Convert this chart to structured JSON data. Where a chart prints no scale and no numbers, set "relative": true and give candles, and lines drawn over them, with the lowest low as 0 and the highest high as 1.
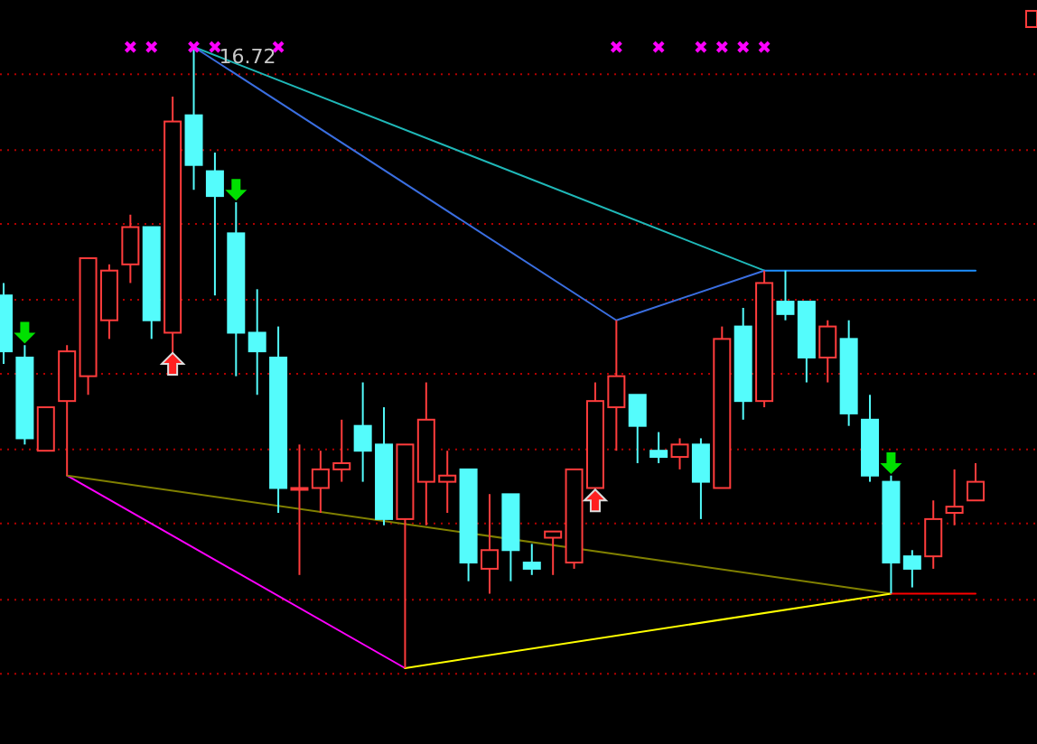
{
  "chart_data": {
    "type": "candlestick",
    "relative": true,
    "ref_lines": [
      {
        "axis": "y",
        "value": 0.956,
        "color": "#b00000",
        "line_style": "dotted"
      },
      {
        "axis": "y",
        "value": 0.834,
        "color": "#b00000",
        "line_style": "dotted"
      },
      {
        "axis": "y",
        "value": 0.715,
        "color": "#b00000",
        "line_style": "dotted"
      },
      {
        "axis": "y",
        "value": 0.593,
        "color": "#b00000",
        "line_style": "dotted"
      },
      {
        "axis": "y",
        "value": 0.474,
        "color": "#b00000",
        "line_style": "dotted"
      },
      {
        "axis": "y",
        "value": 0.352,
        "color": "#b00000",
        "line_style": "dotted"
      },
      {
        "axis": "y",
        "value": 0.233,
        "color": "#b00000",
        "line_style": "dotted"
      },
      {
        "axis": "y",
        "value": 0.11,
        "color": "#b00000",
        "line_style": "dotted"
      },
      {
        "axis": "y",
        "value": -0.009,
        "color": "#b00000",
        "line_style": "dotted"
      }
    ],
    "categories": [
      null,
      null,
      null,
      null,
      null,
      null,
      null,
      null,
      null,
      null,
      null,
      null,
      null,
      null,
      null,
      null,
      null,
      null,
      null,
      null,
      null,
      null,
      null,
      null,
      null,
      null,
      null,
      null,
      null,
      null,
      null,
      null,
      null,
      null,
      null,
      null,
      null,
      null,
      null,
      null,
      null,
      null,
      null,
      null,
      null,
      null,
      null
    ],
    "ohlc": [
      [
        0.6,
        0.62,
        0.49,
        0.51
      ],
      [
        0.5,
        0.52,
        0.36,
        0.37
      ],
      [
        0.35,
        0.42,
        0.35,
        0.42
      ],
      [
        0.43,
        0.52,
        0.31,
        0.51
      ],
      [
        0.47,
        0.66,
        0.44,
        0.66
      ],
      [
        0.56,
        0.65,
        0.53,
        0.64
      ],
      [
        0.65,
        0.73,
        0.62,
        0.71
      ],
      [
        0.71,
        0.71,
        0.53,
        0.56
      ],
      [
        0.54,
        0.92,
        0.5,
        0.88
      ],
      [
        0.89,
        1,
        0.77,
        0.81
      ],
      [
        0.8,
        0.83,
        0.6,
        0.76
      ],
      [
        0.7,
        0.75,
        0.47,
        0.54
      ],
      [
        0.54,
        0.61,
        0.44,
        0.51
      ],
      [
        0.5,
        0.55,
        0.25,
        0.29
      ],
      [
        0.29,
        0.36,
        0.15,
        0.29
      ],
      [
        0.29,
        0.35,
        0.25,
        0.32
      ],
      [
        0.32,
        0.4,
        0.3,
        0.33
      ],
      [
        0.39,
        0.46,
        0.3,
        0.35
      ],
      [
        0.36,
        0.42,
        0.23,
        0.24
      ],
      [
        0.24,
        0.36,
        0,
        0.36
      ],
      [
        0.3,
        0.46,
        0.23,
        0.4
      ],
      [
        0.3,
        0.35,
        0.25,
        0.31
      ],
      [
        0.32,
        0.32,
        0.14,
        0.17
      ],
      [
        0.16,
        0.28,
        0.12,
        0.19
      ],
      [
        0.28,
        0.28,
        0.14,
        0.19
      ],
      [
        0.17,
        0.2,
        0.15,
        0.16
      ],
      [
        0.21,
        0.22,
        0.15,
        0.22
      ],
      [
        0.17,
        0.32,
        0.16,
        0.32
      ],
      [
        0.29,
        0.46,
        0.29,
        0.43
      ],
      [
        0.42,
        0.56,
        0.35,
        0.47
      ],
      [
        0.44,
        0.44,
        0.33,
        0.39
      ],
      [
        0.35,
        0.38,
        0.33,
        0.34
      ],
      [
        0.34,
        0.37,
        0.32,
        0.36
      ],
      [
        0.36,
        0.37,
        0.24,
        0.3
      ],
      [
        0.29,
        0.55,
        0.29,
        0.53
      ],
      [
        0.55,
        0.58,
        0.4,
        0.43
      ],
      [
        0.43,
        0.64,
        0.42,
        0.62
      ],
      [
        0.59,
        0.64,
        0.56,
        0.57
      ],
      [
        0.59,
        0.59,
        0.46,
        0.5
      ],
      [
        0.5,
        0.56,
        0.46,
        0.55
      ],
      [
        0.53,
        0.56,
        0.39,
        0.41
      ],
      [
        0.4,
        0.44,
        0.3,
        0.31
      ],
      [
        0.3,
        0.31,
        0.12,
        0.17
      ],
      [
        0.18,
        0.19,
        0.13,
        0.16
      ],
      [
        0.18,
        0.27,
        0.16,
        0.24
      ],
      [
        0.25,
        0.32,
        0.23,
        0.26
      ],
      [
        0.27,
        0.33,
        0.27,
        0.3
      ]
    ],
    "colors": [
      "#54fcfc",
      "#54fcfc",
      "#ff3c3c",
      "#ff3c3c",
      "#ff3c3c",
      "#ff3c3c",
      "#ff3c3c",
      "#54fcfc",
      "#ff3c3c",
      "#54fcfc",
      "#54fcfc",
      "#54fcfc",
      "#54fcfc",
      "#54fcfc",
      "#ff3c3c",
      "#ff3c3c",
      "#ff3c3c",
      "#54fcfc",
      "#54fcfc",
      "#ff3c3c",
      "#ff3c3c",
      "#ff3c3c",
      "#54fcfc",
      "#ff3c3c",
      "#54fcfc",
      "#54fcfc",
      "#ff3c3c",
      "#ff3c3c",
      "#ff3c3c",
      "#ff3c3c",
      "#54fcfc",
      "#54fcfc",
      "#ff3c3c",
      "#54fcfc",
      "#ff3c3c",
      "#54fcfc",
      "#ff3c3c",
      "#54fcfc",
      "#54fcfc",
      "#ff3c3c",
      "#54fcfc",
      "#54fcfc",
      "#54fcfc",
      "#54fcfc",
      "#ff3c3c",
      "#ff3c3c",
      "#ff3c3c"
    ],
    "annotations": [
      "16.72"
    ],
    "series": [
      {
        "type": "line",
        "color": "#ff00ff",
        "values": [
          null,
          null,
          null,
          0.31,
          null,
          null,
          null,
          null,
          null,
          null,
          null,
          null,
          null,
          null,
          null,
          null,
          null,
          null,
          null,
          0,
          null,
          null,
          null,
          null,
          null,
          null,
          null,
          null,
          null,
          null,
          null,
          null,
          null,
          null,
          null,
          null,
          null,
          null,
          null,
          null,
          null,
          null,
          null,
          null,
          null,
          null,
          null
        ]
      },
      {
        "type": "line",
        "color": "#808000",
        "values": [
          null,
          null,
          null,
          0.31,
          null,
          null,
          null,
          null,
          null,
          null,
          null,
          null,
          null,
          null,
          null,
          null,
          null,
          null,
          null,
          null,
          null,
          null,
          null,
          null,
          null,
          null,
          null,
          null,
          null,
          null,
          null,
          null,
          null,
          null,
          null,
          null,
          null,
          null,
          null,
          null,
          null,
          null,
          0.12,
          null,
          null,
          null,
          null
        ]
      },
      {
        "type": "line",
        "color": "#ffff00",
        "values": [
          null,
          null,
          null,
          null,
          null,
          null,
          null,
          null,
          null,
          null,
          null,
          null,
          null,
          null,
          null,
          null,
          null,
          null,
          null,
          0,
          null,
          null,
          null,
          null,
          null,
          null,
          null,
          null,
          null,
          null,
          null,
          null,
          null,
          null,
          null,
          null,
          null,
          null,
          null,
          null,
          null,
          null,
          0.12,
          null,
          null,
          null,
          null
        ]
      },
      {
        "type": "line",
        "color": "#ff0000",
        "values": [
          null,
          null,
          null,
          null,
          null,
          null,
          null,
          null,
          null,
          null,
          null,
          null,
          null,
          null,
          null,
          null,
          null,
          null,
          null,
          null,
          null,
          null,
          null,
          null,
          null,
          null,
          null,
          null,
          null,
          null,
          null,
          null,
          null,
          null,
          null,
          null,
          null,
          null,
          null,
          null,
          null,
          null,
          0.12,
          null,
          null,
          null,
          0.12
        ]
      },
      {
        "type": "line",
        "color": "#1fb8b8",
        "values": [
          null,
          null,
          null,
          null,
          null,
          null,
          null,
          null,
          null,
          1,
          null,
          null,
          null,
          null,
          null,
          null,
          null,
          null,
          null,
          null,
          null,
          null,
          null,
          null,
          null,
          null,
          null,
          null,
          null,
          null,
          null,
          null,
          null,
          null,
          null,
          null,
          0.64,
          null,
          null,
          null,
          null,
          null,
          null,
          null,
          null,
          null,
          null
        ]
      },
      {
        "type": "line",
        "color": "#3a6ee0",
        "values": [
          null,
          null,
          null,
          null,
          null,
          null,
          null,
          null,
          null,
          1,
          null,
          null,
          null,
          null,
          null,
          null,
          null,
          null,
          null,
          null,
          null,
          null,
          null,
          null,
          null,
          null,
          null,
          null,
          null,
          0.56,
          null,
          null,
          null,
          null,
          null,
          null,
          0.64,
          null,
          null,
          null,
          null,
          null,
          null,
          null,
          null,
          null,
          null
        ]
      },
      {
        "type": "line",
        "color": "#1e90ff",
        "values": [
          null,
          null,
          null,
          null,
          null,
          null,
          null,
          null,
          null,
          null,
          null,
          null,
          null,
          null,
          null,
          null,
          null,
          null,
          null,
          null,
          null,
          null,
          null,
          null,
          null,
          null,
          null,
          null,
          null,
          null,
          null,
          null,
          null,
          null,
          null,
          null,
          0.64,
          null,
          null,
          null,
          null,
          null,
          null,
          null,
          null,
          null,
          0.64
        ]
      },
      {
        "type": "scatter",
        "marker": "cross",
        "color": "#ff00ff",
        "values": [
          null,
          null,
          null,
          null,
          null,
          null,
          1,
          1,
          null,
          1,
          1,
          null,
          null,
          1,
          null,
          null,
          null,
          null,
          null,
          null,
          null,
          null,
          null,
          null,
          null,
          null,
          null,
          null,
          null,
          1,
          null,
          1,
          null,
          1,
          1,
          1,
          1,
          null,
          null,
          null,
          null,
          null,
          null,
          null,
          null,
          null,
          null
        ]
      },
      {
        "type": "scatter",
        "marker": "triangle",
        "color": "#ff2020",
        "values": [
          null,
          null,
          null,
          null,
          null,
          null,
          null,
          null,
          0.49,
          null,
          null,
          null,
          null,
          null,
          null,
          null,
          null,
          null,
          null,
          null,
          null,
          null,
          null,
          null,
          null,
          null,
          null,
          null,
          0.27,
          null,
          null,
          null,
          null,
          null,
          null,
          null,
          null,
          null,
          null,
          null,
          null,
          null,
          null,
          null,
          null,
          null,
          null
        ]
      },
      {
        "type": "scatter",
        "marker": "triangle",
        "color": "#00e000",
        "values": [
          null,
          0.54,
          null,
          null,
          null,
          null,
          null,
          null,
          null,
          null,
          null,
          0.77,
          null,
          null,
          null,
          null,
          null,
          null,
          null,
          null,
          null,
          null,
          null,
          null,
          null,
          null,
          null,
          null,
          null,
          null,
          null,
          null,
          null,
          null,
          null,
          null,
          null,
          null,
          null,
          null,
          null,
          null,
          0.33,
          null,
          null,
          null,
          null
        ]
      }
    ]
  }
}
